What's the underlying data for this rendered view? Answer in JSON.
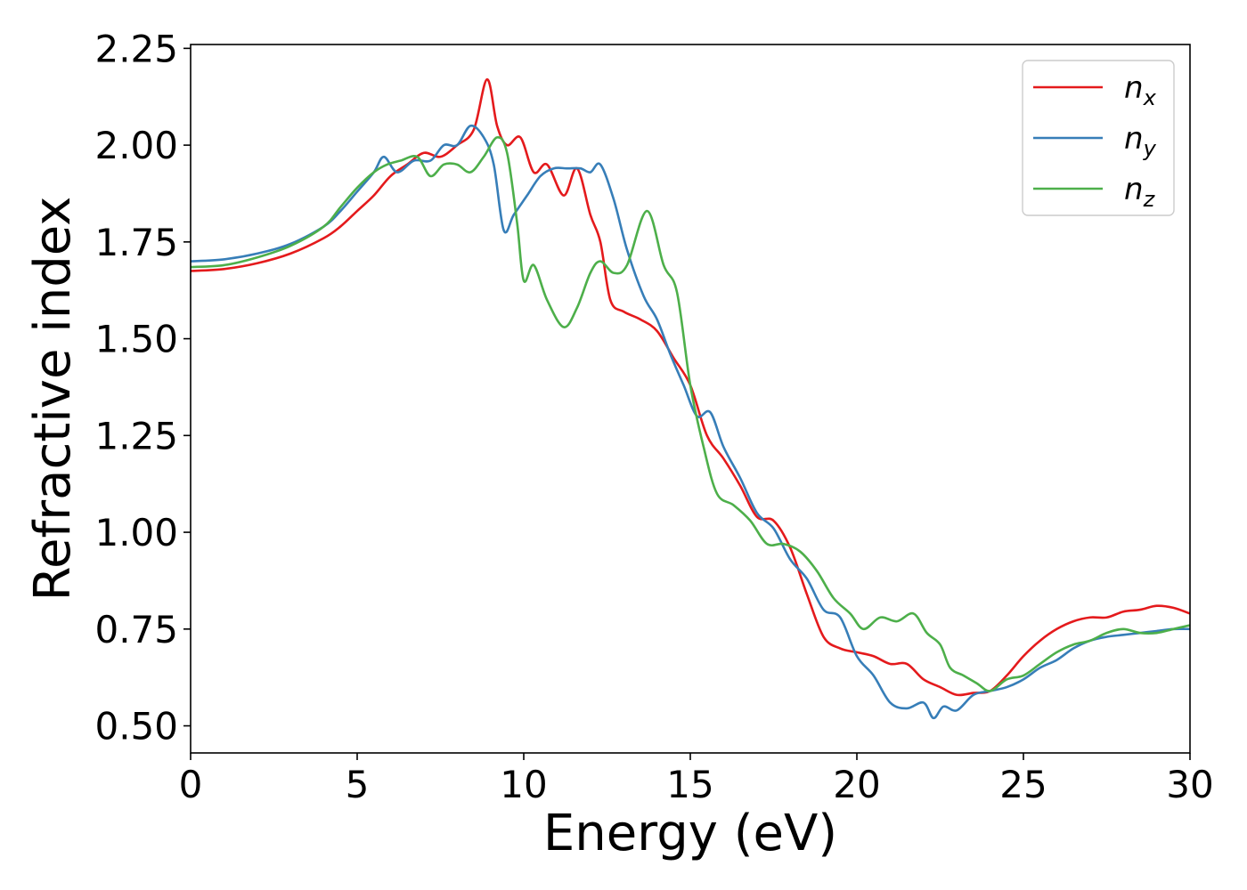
{
  "chart_data": {
    "type": "line",
    "xlabel": "Energy (eV)",
    "ylabel": "Refractive index",
    "xlim": [
      0,
      30
    ],
    "ylim": [
      0.43,
      2.26
    ],
    "xticks": [
      0,
      5,
      10,
      15,
      20,
      25,
      30
    ],
    "xtick_labels": [
      "0",
      "5",
      "10",
      "15",
      "20",
      "25",
      "30"
    ],
    "yticks": [
      0.5,
      0.75,
      1.0,
      1.25,
      1.5,
      1.75,
      2.0,
      2.25
    ],
    "ytick_labels": [
      "0.50",
      "0.75",
      "1.00",
      "1.25",
      "1.50",
      "1.75",
      "2.00",
      "2.25"
    ],
    "grid": false,
    "legend_position": "top-right",
    "series": [
      {
        "name": "n_x",
        "label_base": "n",
        "label_sub": "x",
        "color": "#e41a1c",
        "x": [
          0,
          1,
          2,
          3,
          4,
          4.5,
          5,
          5.5,
          6,
          6.5,
          7,
          7.5,
          8,
          8.5,
          8.9,
          9.2,
          9.5,
          9.9,
          10.3,
          10.7,
          11.2,
          11.6,
          12.0,
          12.3,
          12.6,
          13.0,
          13.5,
          14.0,
          14.5,
          15.0,
          15.5,
          16.0,
          16.5,
          17.0,
          17.5,
          18.0,
          18.5,
          19.0,
          19.5,
          20.0,
          20.5,
          21.0,
          21.5,
          22.0,
          22.5,
          23.0,
          23.5,
          24.0,
          24.5,
          25.0,
          25.5,
          26.0,
          26.5,
          27.0,
          27.5,
          28.0,
          28.5,
          29.0,
          29.5,
          30.0
        ],
        "y": [
          1.675,
          1.68,
          1.695,
          1.72,
          1.76,
          1.79,
          1.83,
          1.87,
          1.92,
          1.95,
          1.98,
          1.97,
          2.0,
          2.04,
          2.17,
          2.05,
          2.0,
          2.02,
          1.93,
          1.95,
          1.87,
          1.94,
          1.82,
          1.75,
          1.6,
          1.57,
          1.55,
          1.52,
          1.45,
          1.38,
          1.25,
          1.19,
          1.12,
          1.04,
          1.03,
          0.96,
          0.84,
          0.73,
          0.7,
          0.69,
          0.68,
          0.66,
          0.66,
          0.62,
          0.6,
          0.58,
          0.585,
          0.59,
          0.63,
          0.68,
          0.72,
          0.75,
          0.77,
          0.78,
          0.78,
          0.795,
          0.8,
          0.81,
          0.805,
          0.79
        ]
      },
      {
        "name": "n_y",
        "label_base": "n",
        "label_sub": "y",
        "color": "#377eb8",
        "x": [
          0,
          1,
          2,
          3,
          4,
          4.5,
          5,
          5.5,
          5.8,
          6.2,
          6.7,
          7.2,
          7.6,
          8.0,
          8.4,
          8.8,
          9.1,
          9.4,
          9.7,
          10.1,
          10.5,
          10.9,
          11.3,
          11.7,
          12.0,
          12.3,
          12.7,
          13.1,
          13.6,
          14.0,
          14.4,
          14.8,
          15.2,
          15.6,
          16.0,
          16.5,
          17.0,
          17.5,
          18.0,
          18.5,
          19.0,
          19.5,
          20.0,
          20.5,
          21.0,
          21.5,
          22.0,
          22.3,
          22.6,
          23.0,
          23.5,
          24.0,
          24.5,
          25.0,
          25.5,
          26.0,
          26.5,
          27.0,
          27.5,
          28.0,
          28.5,
          29.0,
          29.5,
          30.0
        ],
        "y": [
          1.7,
          1.705,
          1.72,
          1.745,
          1.79,
          1.83,
          1.88,
          1.93,
          1.97,
          1.93,
          1.96,
          1.96,
          2.0,
          2.0,
          2.05,
          2.02,
          1.95,
          1.78,
          1.82,
          1.87,
          1.92,
          1.94,
          1.94,
          1.94,
          1.93,
          1.95,
          1.86,
          1.73,
          1.61,
          1.55,
          1.46,
          1.38,
          1.3,
          1.31,
          1.22,
          1.14,
          1.05,
          1.01,
          0.93,
          0.88,
          0.8,
          0.78,
          0.68,
          0.63,
          0.56,
          0.545,
          0.56,
          0.52,
          0.55,
          0.54,
          0.58,
          0.59,
          0.6,
          0.62,
          0.65,
          0.67,
          0.7,
          0.72,
          0.73,
          0.735,
          0.74,
          0.745,
          0.75,
          0.75
        ]
      },
      {
        "name": "n_z",
        "label_base": "n",
        "label_sub": "z",
        "color": "#4daf4a",
        "x": [
          0,
          1,
          2,
          3,
          4,
          4.5,
          5,
          5.5,
          5.9,
          6.3,
          6.8,
          7.2,
          7.6,
          8.0,
          8.4,
          8.8,
          9.2,
          9.5,
          9.8,
          10.0,
          10.3,
          10.7,
          11.2,
          11.6,
          12.0,
          12.3,
          12.7,
          13.1,
          13.7,
          14.2,
          14.6,
          15.0,
          15.4,
          15.8,
          16.3,
          16.8,
          17.3,
          17.8,
          18.3,
          18.8,
          19.3,
          19.8,
          20.2,
          20.7,
          21.2,
          21.7,
          22.1,
          22.5,
          22.8,
          23.2,
          23.6,
          24.0,
          24.5,
          25.0,
          25.5,
          26.0,
          26.5,
          27.0,
          27.5,
          28.0,
          28.5,
          29.0,
          29.5,
          30.0
        ],
        "y": [
          1.685,
          1.69,
          1.71,
          1.74,
          1.79,
          1.84,
          1.89,
          1.93,
          1.95,
          1.96,
          1.97,
          1.92,
          1.95,
          1.95,
          1.93,
          1.97,
          2.02,
          1.98,
          1.8,
          1.65,
          1.69,
          1.6,
          1.53,
          1.58,
          1.67,
          1.7,
          1.67,
          1.69,
          1.83,
          1.69,
          1.62,
          1.38,
          1.22,
          1.1,
          1.07,
          1.03,
          0.97,
          0.97,
          0.95,
          0.9,
          0.83,
          0.79,
          0.75,
          0.78,
          0.77,
          0.79,
          0.74,
          0.71,
          0.65,
          0.63,
          0.61,
          0.59,
          0.62,
          0.63,
          0.66,
          0.69,
          0.71,
          0.72,
          0.74,
          0.75,
          0.74,
          0.74,
          0.75,
          0.76
        ]
      }
    ]
  }
}
